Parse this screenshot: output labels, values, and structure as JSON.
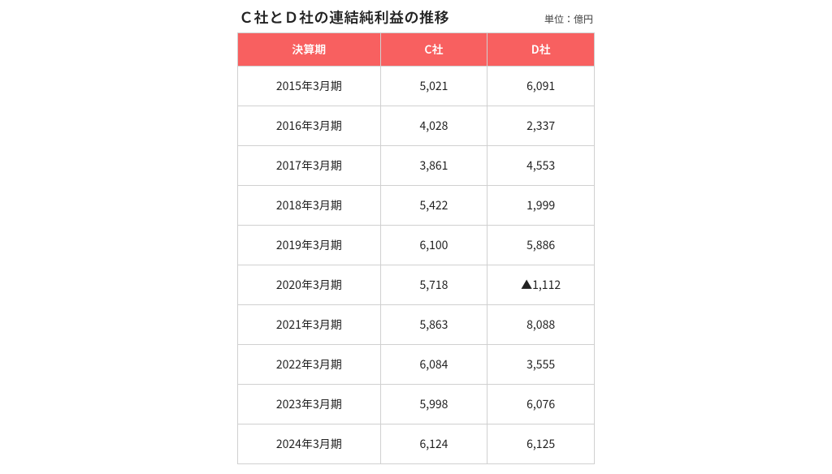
{
  "title": "Ｃ社とＤ社の連結純利益の推移",
  "unit": "単位：億円",
  "table": {
    "headers": [
      "決算期",
      "C社",
      "D社"
    ],
    "header_bg": "#f86060",
    "header_fg": "#ffffff",
    "border_color": "#d0d0d0",
    "neg_color": "#e63a3a",
    "col_widths_pct": [
      40,
      30,
      30
    ],
    "rows": [
      {
        "period": "2015年3月期",
        "c": "5,021",
        "d": "6,091",
        "d_neg": false
      },
      {
        "period": "2016年3月期",
        "c": "4,028",
        "d": "2,337",
        "d_neg": false
      },
      {
        "period": "2017年3月期",
        "c": "3,861",
        "d": "4,553",
        "d_neg": false
      },
      {
        "period": "2018年3月期",
        "c": "5,422",
        "d": "1,999",
        "d_neg": false
      },
      {
        "period": "2019年3月期",
        "c": "6,100",
        "d": "5,886",
        "d_neg": false
      },
      {
        "period": "2020年3月期",
        "c": "5,718",
        "d": "▲1,112",
        "d_neg": true
      },
      {
        "period": "2021年3月期",
        "c": "5,863",
        "d": "8,088",
        "d_neg": false
      },
      {
        "period": "2022年3月期",
        "c": "6,084",
        "d": "3,555",
        "d_neg": false
      },
      {
        "period": "2023年3月期",
        "c": "5,998",
        "d": "6,076",
        "d_neg": false
      },
      {
        "period": "2024年3月期",
        "c": "6,124",
        "d": "6,125",
        "d_neg": false
      }
    ]
  }
}
